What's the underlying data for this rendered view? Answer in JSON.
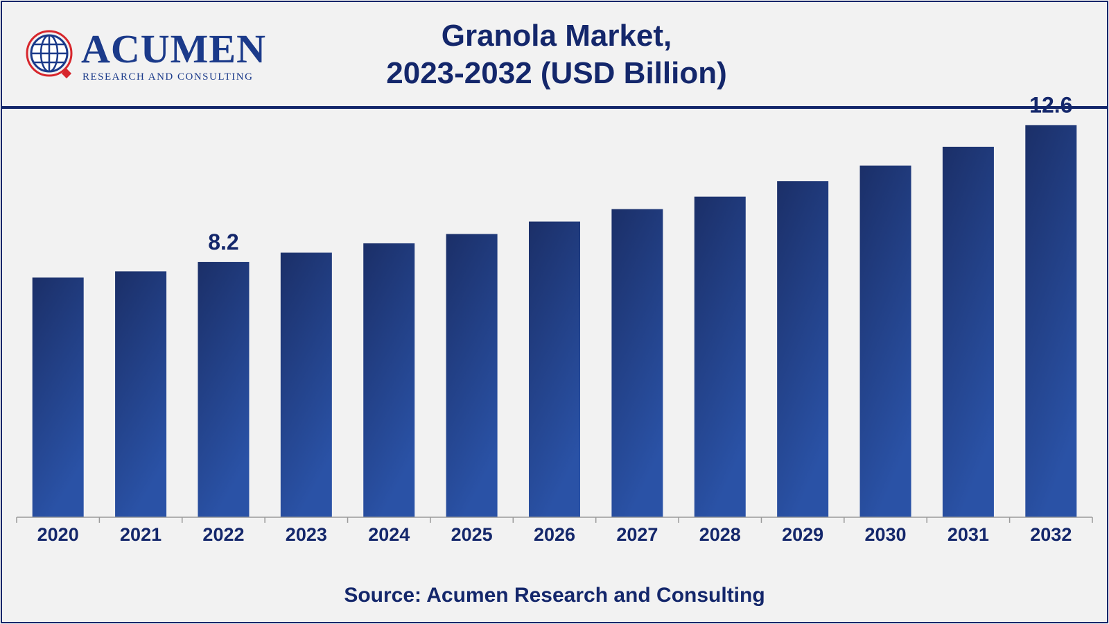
{
  "header": {
    "logo": {
      "word": "ACUMEN",
      "sub": "RESEARCH AND CONSULTING"
    },
    "title_line1": "Granola Market,",
    "title_line2": "2023-2032 (USD Billion)"
  },
  "source": "Source: Acumen Research and Consulting",
  "colors": {
    "bar_top": "#1b2f68",
    "bar_bottom": "#2a52a6",
    "text": "#14276b"
  },
  "chart_data": {
    "type": "bar",
    "title": "Granola Market, 2023-2032 (USD Billion)",
    "categories": [
      "2020",
      "2021",
      "2022",
      "2023",
      "2024",
      "2025",
      "2026",
      "2027",
      "2028",
      "2029",
      "2030",
      "2031",
      "2032"
    ],
    "values": [
      7.7,
      7.9,
      8.2,
      8.5,
      8.8,
      9.1,
      9.5,
      9.9,
      10.3,
      10.8,
      11.3,
      11.9,
      12.6
    ],
    "data_labels": [
      {
        "index": 2,
        "text": "8.2"
      },
      {
        "index": 12,
        "text": "12.6"
      }
    ],
    "ylim": [
      0,
      13.5
    ],
    "xlabel": "",
    "ylabel": "",
    "grid": false,
    "legend": "none"
  }
}
